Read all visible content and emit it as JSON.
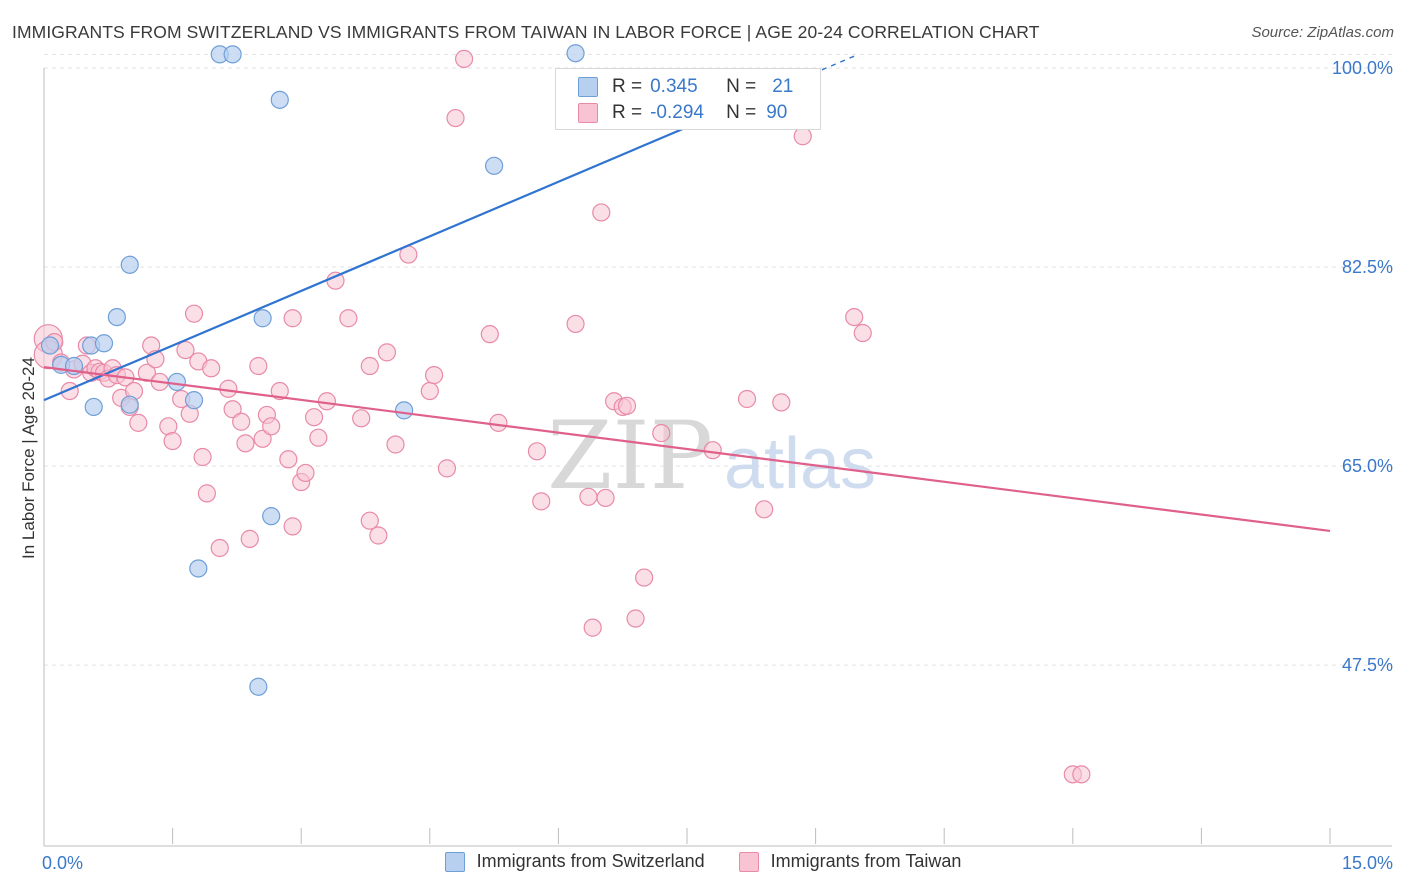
{
  "header": {
    "title": "IMMIGRANTS FROM SWITZERLAND VS IMMIGRANTS FROM TAIWAN IN LABOR FORCE | AGE 20-24 CORRELATION CHART",
    "source": "Source: ZipAtlas.com"
  },
  "watermark": {
    "zip": "ZIP",
    "atlas": "atlas"
  },
  "legend": {
    "rows": [
      {
        "r_label": "R =",
        "r_value": "0.345",
        "n_label": "N =",
        "n_value": "21"
      },
      {
        "r_label": "R =",
        "r_value": "-0.294",
        "n_label": "N =",
        "n_value": "90"
      }
    ]
  },
  "colors": {
    "switzerland_fill": "#b8d0f0",
    "switzerland_stroke": "#6f9fd8",
    "switzerland_line": "#2f74d0",
    "taiwan_fill": "#f8c4d4",
    "taiwan_stroke": "#e88aa8",
    "taiwan_line": "#e0608c",
    "tick_label": "#3a78c9",
    "grid": "#e2e2e2"
  },
  "chart_data": {
    "type": "scatter",
    "title": "IMMIGRANTS FROM SWITZERLAND VS IMMIGRANTS FROM TAIWAN IN LABOR FORCE | AGE 20-24 CORRELATION CHART",
    "ylabel": "In Labor Force | Age 20-24",
    "xlim": [
      0,
      15
    ],
    "ylim": [
      31.6,
      100
    ],
    "x_tick_labels": [
      "0.0%",
      "15.0%"
    ],
    "y_ticks": [
      47.5,
      65.0,
      82.5,
      100.0
    ],
    "y_tick_labels": [
      "47.5%",
      "65.0%",
      "82.5%",
      "100.0%"
    ],
    "grid": true,
    "legend_position": "top-center",
    "series": [
      {
        "name": "Immigrants from Switzerland",
        "r": 0.345,
        "n": 21,
        "points": [
          [
            0.07,
            75.6
          ],
          [
            0.2,
            73.9
          ],
          [
            0.35,
            73.8
          ],
          [
            0.55,
            75.6
          ],
          [
            0.7,
            75.8
          ],
          [
            0.58,
            70.2
          ],
          [
            0.85,
            78.1
          ],
          [
            1.0,
            82.7
          ],
          [
            1.0,
            70.4
          ],
          [
            1.55,
            72.4
          ],
          [
            1.75,
            70.8
          ],
          [
            1.8,
            56.0
          ],
          [
            2.05,
            101.2
          ],
          [
            2.2,
            101.2
          ],
          [
            2.5,
            45.6
          ],
          [
            2.55,
            78.0
          ],
          [
            2.65,
            60.6
          ],
          [
            2.75,
            97.2
          ],
          [
            4.2,
            69.9
          ],
          [
            5.25,
            91.4
          ],
          [
            6.2,
            101.3
          ]
        ],
        "trend": {
          "x0": 0,
          "y0": 70.8,
          "x1": 9.5,
          "y1": 101.2,
          "dashed_from_x": 8.0
        }
      },
      {
        "name": "Immigrants from Taiwan",
        "r": -0.294,
        "n": 90,
        "points": [
          [
            0.05,
            76.2
          ],
          [
            0.05,
            74.8
          ],
          [
            0.12,
            75.9
          ],
          [
            0.2,
            74.1
          ],
          [
            0.3,
            71.6
          ],
          [
            0.35,
            73.5
          ],
          [
            0.45,
            74.0
          ],
          [
            0.5,
            75.6
          ],
          [
            0.55,
            73.2
          ],
          [
            0.6,
            73.6
          ],
          [
            0.65,
            73.3
          ],
          [
            0.7,
            73.2
          ],
          [
            0.75,
            72.7
          ],
          [
            0.8,
            73.6
          ],
          [
            0.85,
            73.0
          ],
          [
            0.9,
            71.0
          ],
          [
            0.95,
            72.8
          ],
          [
            1.0,
            70.2
          ],
          [
            1.05,
            71.6
          ],
          [
            1.1,
            68.8
          ],
          [
            1.2,
            73.2
          ],
          [
            1.25,
            75.6
          ],
          [
            1.3,
            74.4
          ],
          [
            1.35,
            72.4
          ],
          [
            1.45,
            68.5
          ],
          [
            1.5,
            67.2
          ],
          [
            1.6,
            70.9
          ],
          [
            1.65,
            75.2
          ],
          [
            1.7,
            69.6
          ],
          [
            1.75,
            78.4
          ],
          [
            1.8,
            74.2
          ],
          [
            1.85,
            65.8
          ],
          [
            1.9,
            62.6
          ],
          [
            1.95,
            73.6
          ],
          [
            2.05,
            57.8
          ],
          [
            2.15,
            71.8
          ],
          [
            2.2,
            70.0
          ],
          [
            2.3,
            68.9
          ],
          [
            2.35,
            67.0
          ],
          [
            2.4,
            58.6
          ],
          [
            2.5,
            73.8
          ],
          [
            2.55,
            67.4
          ],
          [
            2.6,
            69.5
          ],
          [
            2.65,
            68.5
          ],
          [
            2.75,
            71.6
          ],
          [
            2.85,
            65.6
          ],
          [
            2.9,
            78.0
          ],
          [
            2.9,
            59.7
          ],
          [
            3.0,
            63.6
          ],
          [
            3.05,
            64.4
          ],
          [
            3.15,
            69.3
          ],
          [
            3.2,
            67.5
          ],
          [
            3.3,
            70.7
          ],
          [
            3.4,
            81.3
          ],
          [
            3.55,
            78.0
          ],
          [
            3.7,
            69.2
          ],
          [
            3.8,
            73.8
          ],
          [
            3.8,
            60.2
          ],
          [
            3.9,
            58.9
          ],
          [
            4.0,
            75.0
          ],
          [
            4.1,
            66.9
          ],
          [
            4.25,
            83.6
          ],
          [
            4.5,
            71.6
          ],
          [
            4.55,
            73.0
          ],
          [
            4.7,
            64.8
          ],
          [
            4.8,
            95.6
          ],
          [
            4.9,
            100.8
          ],
          [
            5.2,
            76.6
          ],
          [
            5.3,
            68.8
          ],
          [
            5.75,
            66.3
          ],
          [
            5.8,
            61.9
          ],
          [
            6.2,
            77.5
          ],
          [
            6.35,
            62.3
          ],
          [
            6.4,
            50.8
          ],
          [
            6.5,
            87.3
          ],
          [
            6.55,
            62.2
          ],
          [
            6.65,
            70.7
          ],
          [
            6.75,
            70.2
          ],
          [
            6.8,
            70.3
          ],
          [
            6.9,
            51.6
          ],
          [
            7.0,
            55.2
          ],
          [
            7.2,
            67.9
          ],
          [
            7.8,
            66.4
          ],
          [
            8.2,
            70.9
          ],
          [
            8.4,
            61.2
          ],
          [
            8.6,
            70.6
          ],
          [
            8.85,
            94.0
          ],
          [
            9.45,
            78.1
          ],
          [
            9.55,
            76.7
          ],
          [
            12.0,
            37.9
          ]
        ],
        "trend": {
          "x0": 0,
          "y0": 73.7,
          "x1": 15,
          "y1": 59.3
        }
      }
    ]
  }
}
